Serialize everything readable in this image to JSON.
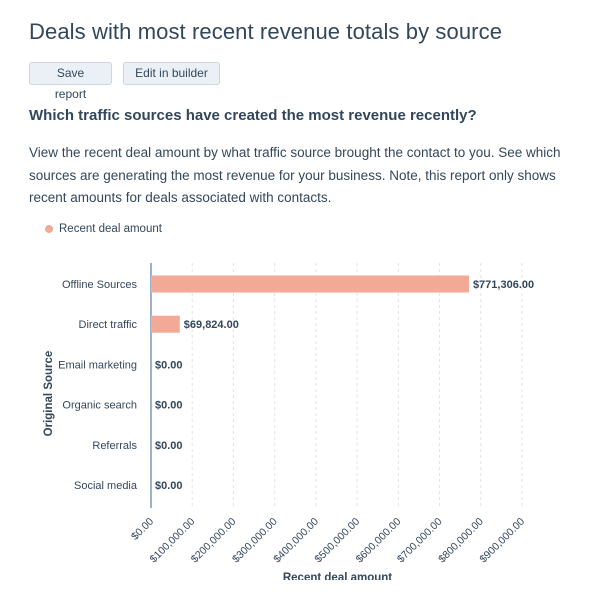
{
  "title": "Deals with most recent revenue totals by source",
  "buttons": {
    "save": "Save report",
    "edit": "Edit in builder"
  },
  "question": "Which traffic sources have created the most revenue recently?",
  "description": "View the recent deal amount by what traffic source brought the contact to you. See which sources are generating the most revenue for your business. Note, this report only shows recent amounts for deals associated with contacts.",
  "colors": {
    "bar": "#f2a995",
    "text": "#33475b",
    "axis": "#7c98b6",
    "grid": "#dfe3eb"
  },
  "chart_data": {
    "type": "bar",
    "orientation": "horizontal",
    "categories": [
      "Offline Sources",
      "Direct traffic",
      "Email marketing",
      "Organic search",
      "Referrals",
      "Social media"
    ],
    "series": [
      {
        "name": "Recent deal amount",
        "values": [
          771306,
          69824,
          0,
          0,
          0,
          0
        ]
      }
    ],
    "data_labels": [
      "$771,306.00",
      "$69,824.00",
      "$0.00",
      "$0.00",
      "$0.00",
      "$0.00"
    ],
    "xlabel": "Recent deal amount",
    "ylabel": "Original Source",
    "xlim": [
      0,
      900000
    ],
    "x_ticks": [
      "$0.00",
      "$100,000.00",
      "$200,000.00",
      "$300,000.00",
      "$400,000.00",
      "$500,000.00",
      "$600,000.00",
      "$700,000.00",
      "$800,000.00",
      "$900,000.00"
    ],
    "grid": "vertical dashed",
    "legend": "top-left"
  }
}
